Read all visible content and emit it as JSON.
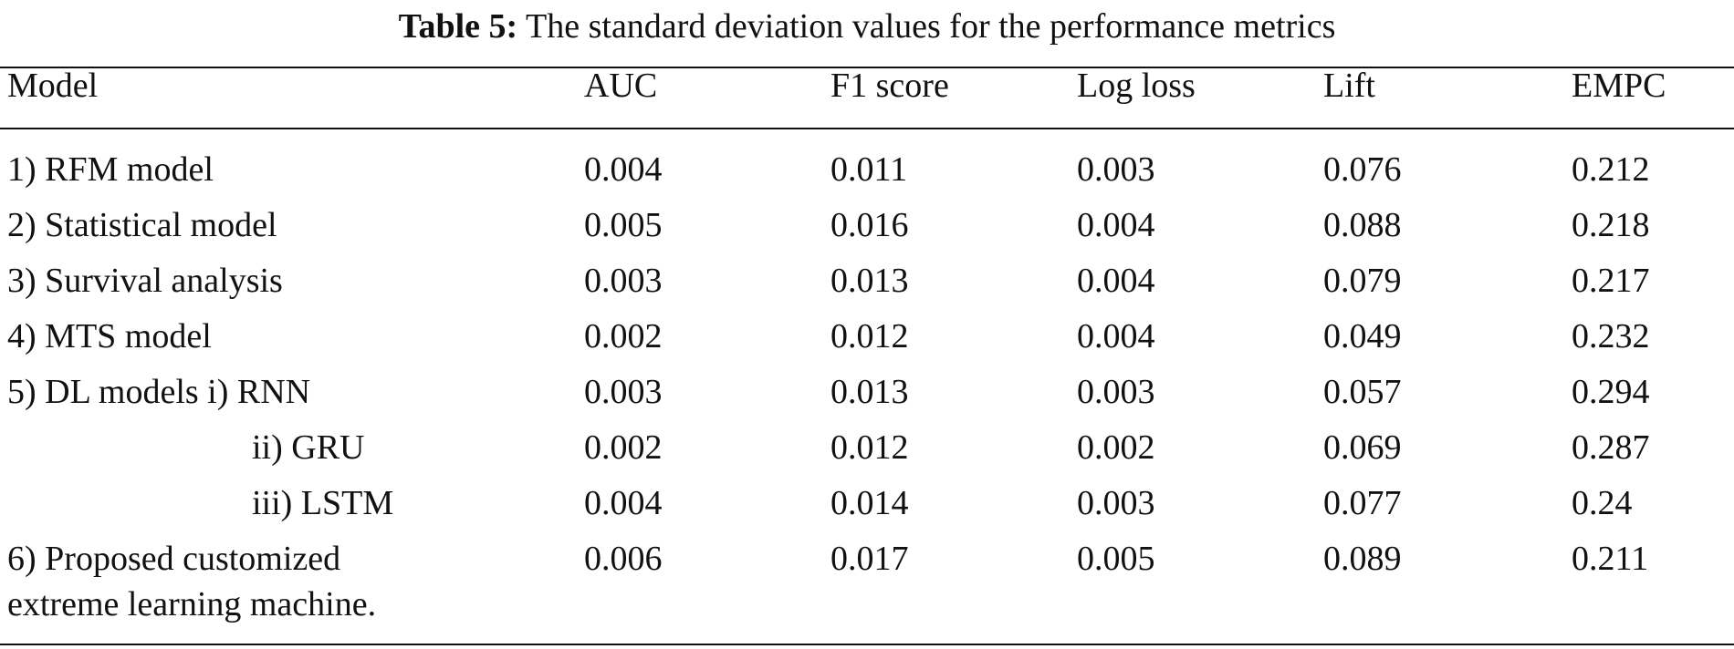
{
  "caption": {
    "label": "Table 5:",
    "text": "The standard deviation values for the performance metrics"
  },
  "headers": {
    "model": "Model",
    "auc": "AUC",
    "f1": "F1 score",
    "logloss": "Log loss",
    "lift": "Lift",
    "empc": "EMPC"
  },
  "rows": [
    {
      "model": "1) RFM model",
      "auc": "0.004",
      "f1": "0.011",
      "logloss": "0.003",
      "lift": "0.076",
      "empc": "0.212"
    },
    {
      "model": "2) Statistical model",
      "auc": "0.005",
      "f1": "0.016",
      "logloss": "0.004",
      "lift": "0.088",
      "empc": "0.218"
    },
    {
      "model": "3) Survival analysis",
      "auc": "0.003",
      "f1": "0.013",
      "logloss": "0.004",
      "lift": "0.079",
      "empc": "0.217"
    },
    {
      "model": "4) MTS model",
      "auc": "0.002",
      "f1": "0.012",
      "logloss": "0.004",
      "lift": "0.049",
      "empc": "0.232"
    },
    {
      "model": "5) DL models i) RNN",
      "auc": "0.003",
      "f1": "0.013",
      "logloss": "0.003",
      "lift": "0.057",
      "empc": "0.294"
    },
    {
      "model": "ii) GRU",
      "auc": "0.002",
      "f1": "0.012",
      "logloss": "0.002",
      "lift": "0.069",
      "empc": "0.287"
    },
    {
      "model": "iii) LSTM",
      "auc": "0.004",
      "f1": "0.014",
      "logloss": "0.003",
      "lift": "0.077",
      "empc": "0.24"
    },
    {
      "model_line1": "6) Proposed customized",
      "model_line2": "extreme learning machine.",
      "auc": "0.006",
      "f1": "0.017",
      "logloss": "0.005",
      "lift": "0.089",
      "empc": "0.211"
    }
  ]
}
